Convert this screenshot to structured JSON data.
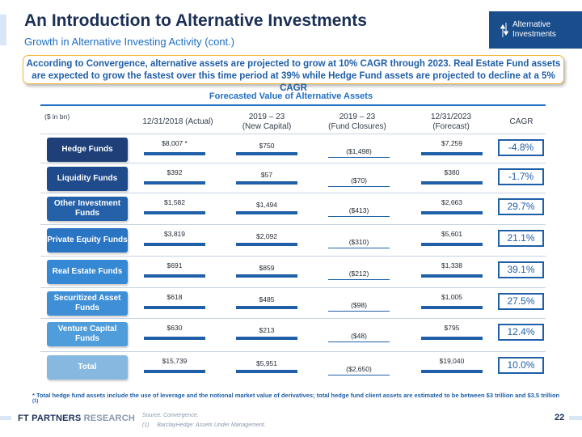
{
  "header": {
    "title": "An Introduction to Alternative Investments",
    "subtitle": "Growth in Alternative Investing Activity (cont.)",
    "tag_line1": "Alternative",
    "tag_line2": "Investments",
    "tag_icon": "up-down-arrows-icon"
  },
  "callout": {
    "text": "According to Convergence, alternative assets are projected to grow at 10% CAGR through 2023. Real Estate Fund assets are expected to grow the fastest over this time period at 39% while Hedge Fund assets are projected to decline at a 5% CAGR"
  },
  "table": {
    "title": "Forecasted Value of Alternative Assets",
    "unit": "($ in bn)",
    "headers": {
      "col1": "12/31/2018 (Actual)",
      "col2_line1": "2019 – 23",
      "col2_line2": "(New Capital)",
      "col3_line1": "2019 – 23",
      "col3_line2": "(Fund Closures)",
      "col4_line1": "12/31/2023",
      "col4_line2": "(Forecast)",
      "col5": "CAGR"
    },
    "rows": [
      {
        "label": "Hedge Funds",
        "actual": "$8,007 *",
        "new_capital": "$750",
        "closures": "($1,498)",
        "forecast": "$7,259",
        "cagr": "-4.8%"
      },
      {
        "label": "Liquidity Funds",
        "actual": "$392",
        "new_capital": "$57",
        "closures": "($70)",
        "forecast": "$380",
        "cagr": "-1.7%"
      },
      {
        "label": "Other Investment Funds",
        "actual": "$1,582",
        "new_capital": "$1,494",
        "closures": "($413)",
        "forecast": "$2,663",
        "cagr": "29.7%"
      },
      {
        "label": "Private Equity Funds",
        "actual": "$3,819",
        "new_capital": "$2,092",
        "closures": "($310)",
        "forecast": "$5,601",
        "cagr": "21.1%"
      },
      {
        "label": "Real Estate Funds",
        "actual": "$691",
        "new_capital": "$859",
        "closures": "($212)",
        "forecast": "$1,338",
        "cagr": "39.1%"
      },
      {
        "label": "Securitized Asset Funds",
        "actual": "$618",
        "new_capital": "$485",
        "closures": "($98)",
        "forecast": "$1,005",
        "cagr": "27.5%"
      },
      {
        "label": "Venture Capital Funds",
        "actual": "$630",
        "new_capital": "$213",
        "closures": "($48)",
        "forecast": "$795",
        "cagr": "12.4%"
      },
      {
        "label": "Total",
        "actual": "$15,739",
        "new_capital": "$5,951",
        "closures": "($2,650)",
        "forecast": "$19,040",
        "cagr": "10.0%"
      }
    ]
  },
  "footnote": {
    "text": "* Total hedge fund assets include the use of leverage and the notional market value of derivatives; total hedge fund client assets are estimated to be between $3 trillion and $3.5 trillion",
    "marker": "(1)"
  },
  "footer": {
    "brand_bold": "FT PARTNERS",
    "brand_light": "RESEARCH",
    "source_line1": "Source: Convergence.",
    "source_line2_num": "(1)",
    "source_line2": "BarclayHedge: Assets Under Management.",
    "page_number": "22"
  },
  "colors": {
    "navy": "#1b2f55",
    "accent_blue": "#1f5fa8",
    "label_shades": [
      "#1e3f78",
      "#1f4a8c",
      "#2561a8",
      "#2a74c4",
      "#3588d4",
      "#3f8fd6",
      "#4f9ddb",
      "#86b8e0"
    ],
    "callout_border": "#f2b630"
  }
}
